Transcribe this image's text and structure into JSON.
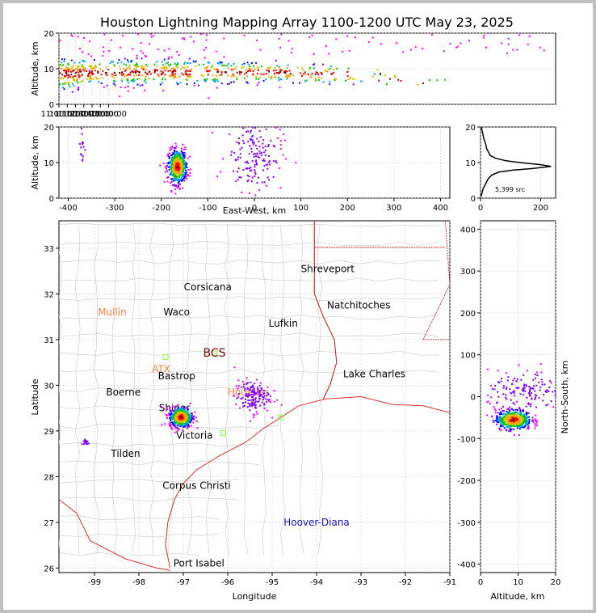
{
  "title": "Houston Lightning Mapping Array 1100-1200 UTC May 23, 2025",
  "colors": {
    "ramp": [
      "#ff00ff",
      "#8000ff",
      "#0000ff",
      "#00a0ff",
      "#00c000",
      "#c8c800",
      "#ffa000",
      "#ff0000",
      "#800000"
    ],
    "coast": "#e03030",
    "state_border": "#d01010",
    "county": "#c8c8c8",
    "station": "#80ff40",
    "ref_orange": "#ff8040",
    "ref_blue": "#1010d0"
  },
  "chart_data": [
    {
      "type": "scatter",
      "name": "altitude-time",
      "xlim": [
        "11:00:00",
        "12:00:00"
      ],
      "ylim": [
        0,
        20
      ],
      "ylabel": "Altitude, km",
      "xticks": [
        "11:00:00",
        "11:10:00",
        "11:20:00",
        "11:30:00",
        "11:40:00",
        "11:50:00",
        "12:00:00"
      ],
      "yticks": [
        0,
        10,
        20
      ],
      "clusters": [
        {
          "t_min": 0.5,
          "alt": 8.5,
          "spread": 2.5,
          "n": 150
        },
        {
          "t_min": 4,
          "alt": 9,
          "spread": 2,
          "n": 90
        },
        {
          "t_min": 9,
          "alt": 9,
          "spread": 2,
          "n": 120
        },
        {
          "t_min": 14,
          "alt": 9,
          "spread": 2,
          "n": 110
        },
        {
          "t_min": 19,
          "alt": 9,
          "spread": 1.8,
          "n": 80
        },
        {
          "t_min": 23,
          "alt": 9,
          "spread": 1.6,
          "n": 60
        },
        {
          "t_min": 27,
          "alt": 9,
          "spread": 1.5,
          "n": 55
        },
        {
          "t_min": 31,
          "alt": 8.5,
          "spread": 1.5,
          "n": 40
        },
        {
          "t_min": 35,
          "alt": 8.5,
          "spread": 1.5,
          "n": 25
        },
        {
          "t_min": 39,
          "alt": 7,
          "spread": 1.2,
          "n": 10
        },
        {
          "t_min": 45,
          "alt": 6,
          "spread": 0.8,
          "n": 5
        }
      ]
    },
    {
      "type": "scatter",
      "name": "altitude-east-west",
      "xlim": [
        -420,
        420
      ],
      "ylim": [
        0,
        20
      ],
      "xlabel": "East-West, km",
      "ylabel": "Altitude, km",
      "xticks": [
        -400,
        -300,
        -200,
        -100,
        0,
        100,
        200,
        300,
        400
      ],
      "yticks": [
        0,
        10,
        20
      ],
      "clusters": [
        {
          "x": -165,
          "alt": 8.8,
          "sx": 10,
          "salt": 2.4,
          "n": 500
        },
        {
          "x": 0,
          "alt": 12,
          "sx": 30,
          "salt": 5,
          "n": 160
        },
        {
          "x": -370,
          "alt": 15,
          "sx": 4,
          "salt": 3,
          "n": 15
        }
      ]
    },
    {
      "type": "line",
      "name": "altitude-histogram",
      "xlim": [
        0,
        250
      ],
      "ylim": [
        0,
        20
      ],
      "xticks": [
        0,
        200
      ],
      "yticks": [
        0,
        10,
        20
      ],
      "annotation": "5,399 src",
      "x": [
        2,
        5,
        8,
        14,
        20,
        26,
        38,
        60,
        110,
        170,
        235,
        200,
        140,
        85,
        50,
        32,
        26,
        20,
        18,
        14,
        10,
        8,
        5,
        3
      ],
      "y": [
        0.5,
        1.5,
        2.5,
        3.5,
        4.5,
        5.5,
        6.5,
        7.3,
        7.9,
        8.3,
        8.9,
        9.4,
        9.9,
        10.5,
        11.2,
        12,
        13,
        14,
        15,
        16,
        17,
        18,
        19,
        20
      ]
    },
    {
      "type": "scatter",
      "name": "plan-view-map",
      "xlim": [
        -99.8,
        -91
      ],
      "ylim": [
        25.9,
        33.6
      ],
      "xlabel": "Longitude",
      "ylabel": "Latitude",
      "xticks": [
        -99,
        -98,
        -97,
        -96,
        -95,
        -94,
        -93,
        -92,
        -91
      ],
      "yticks": [
        26,
        27,
        28,
        29,
        30,
        31,
        32,
        33
      ],
      "clusters": [
        {
          "lon": -97.05,
          "lat": 29.3,
          "slon": 0.13,
          "slat": 0.11,
          "n": 450
        },
        {
          "lon": -95.45,
          "lat": 29.75,
          "slon": 0.2,
          "slat": 0.18,
          "n": 160
        },
        {
          "lon": -99.2,
          "lat": 28.75,
          "slon": 0.04,
          "slat": 0.04,
          "n": 14
        }
      ],
      "places": [
        {
          "name": "Shreveport",
          "lon": -93.75,
          "lat": 32.55,
          "color": "black"
        },
        {
          "name": "Corsicana",
          "lon": -96.45,
          "lat": 32.15,
          "color": "black"
        },
        {
          "name": "Natchitoches",
          "lon": -93.05,
          "lat": 31.75,
          "color": "black"
        },
        {
          "name": "Mullin",
          "lon": -98.6,
          "lat": 31.6,
          "color": "orange"
        },
        {
          "name": "Waco",
          "lon": -97.15,
          "lat": 31.6,
          "color": "black"
        },
        {
          "name": "Lufkin",
          "lon": -94.75,
          "lat": 31.35,
          "color": "black"
        },
        {
          "name": "BCS",
          "lon": -96.3,
          "lat": 30.7,
          "color": "darkred"
        },
        {
          "name": "ATX",
          "lon": -97.5,
          "lat": 30.35,
          "color": "orange"
        },
        {
          "name": "Bastrop",
          "lon": -97.15,
          "lat": 30.2,
          "color": "black"
        },
        {
          "name": "Lake Charles",
          "lon": -92.7,
          "lat": 30.25,
          "color": "black"
        },
        {
          "name": "Houston",
          "lon": -95.55,
          "lat": 29.85,
          "color": "orange"
        },
        {
          "name": "Boerne",
          "lon": -98.35,
          "lat": 29.85,
          "color": "black"
        },
        {
          "name": "Shiner",
          "lon": -97.2,
          "lat": 29.5,
          "color": "black"
        },
        {
          "name": "Victoria",
          "lon": -96.75,
          "lat": 28.9,
          "color": "black"
        },
        {
          "name": "Tilden",
          "lon": -98.3,
          "lat": 28.5,
          "color": "black"
        },
        {
          "name": "Corpus Christi",
          "lon": -96.7,
          "lat": 27.8,
          "color": "black"
        },
        {
          "name": "Hoover-Diana",
          "lon": -94.0,
          "lat": 27.0,
          "color": "blue"
        },
        {
          "name": "Port Isabel",
          "lon": -96.65,
          "lat": 26.1,
          "color": "black"
        }
      ],
      "stations": [
        {
          "lon": -97.4,
          "lat": 30.62
        },
        {
          "lon": -96.3,
          "lat": 30.7
        },
        {
          "lon": -94.8,
          "lat": 29.3
        },
        {
          "lon": -96.1,
          "lat": 28.95
        },
        {
          "lon": -97.05,
          "lat": 29.1
        }
      ]
    },
    {
      "type": "scatter",
      "name": "altitude-north-south",
      "xlim": [
        0,
        20
      ],
      "ylim": [
        -420,
        420
      ],
      "xlabel": "Altitude, km",
      "ylabel": "North-South, km",
      "xticks": [
        0,
        10,
        20
      ],
      "yticks": [
        -400,
        -300,
        -200,
        -100,
        0,
        100,
        200,
        300,
        400
      ],
      "clusters": [
        {
          "alt": 8.8,
          "y": -55,
          "salt": 2.4,
          "sy": 12,
          "n": 450
        },
        {
          "alt": 12,
          "y": 10,
          "salt": 5,
          "sy": 25,
          "n": 150
        }
      ]
    }
  ]
}
